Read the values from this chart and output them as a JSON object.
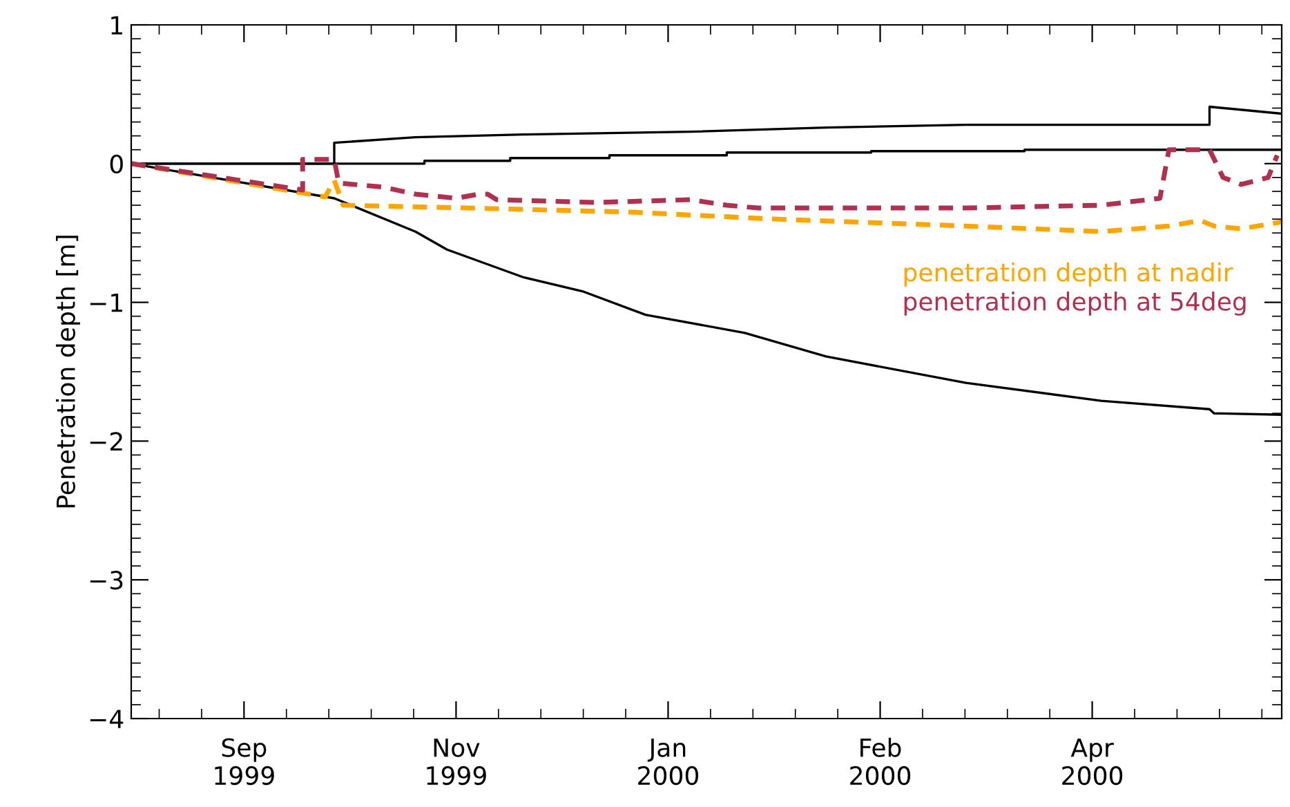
{
  "chart_data": {
    "type": "line",
    "ylabel": "Penetration depth [m]",
    "xlim": [
      "1999-09-05",
      "2000-05-17"
    ],
    "xticks": [
      {
        "value": "1999-09-30",
        "label": "Sep\n1999"
      },
      {
        "value": "1999-11-16",
        "label": "Nov\n1999"
      },
      {
        "value": "2000-01-02",
        "label": "Jan\n2000"
      },
      {
        "value": "2000-02-18",
        "label": "Feb\n2000"
      },
      {
        "value": "2000-04-05",
        "label": "Apr\n2000"
      }
    ],
    "ylim": [
      -4,
      1
    ],
    "yticks": [
      {
        "value": -4,
        "label": "−4"
      },
      {
        "value": -3,
        "label": "−3"
      },
      {
        "value": -2,
        "label": "−2"
      },
      {
        "value": -1,
        "label": "−1"
      },
      0,
      1
    ],
    "grid": false,
    "legend": "right",
    "marker": "none",
    "series": [
      {
        "color": "#000000",
        "line_style": "solid",
        "x": [
          "1999-09-05",
          "1999-10-20",
          "1999-10-20",
          "1999-11-07",
          "1999-12-01",
          "2000-01-07",
          "2000-02-06",
          "2000-03-08",
          "2000-05-01",
          "2000-05-01",
          "2000-05-17"
        ],
        "values": [
          0,
          0,
          0.15,
          0.19,
          0.21,
          0.23,
          0.26,
          0.28,
          0.28,
          0.41,
          0.36
        ]
      },
      {
        "color": "#000000",
        "line_style": "solid",
        "x": [
          "1999-09-05",
          "1999-11-09",
          "1999-11-09",
          "1999-11-28",
          "1999-11-28",
          "1999-12-20",
          "1999-12-20",
          "2000-01-15",
          "2000-01-15",
          "2000-02-16",
          "2000-02-16",
          "2000-03-21",
          "2000-03-21",
          "2000-05-17"
        ],
        "values": [
          0,
          0,
          0.02,
          0.02,
          0.04,
          0.04,
          0.06,
          0.06,
          0.08,
          0.08,
          0.09,
          0.09,
          0.1,
          0.1
        ]
      },
      {
        "color": "#000000",
        "line_style": "solid",
        "x": [
          "1999-09-05",
          "1999-10-20",
          "1999-11-07",
          "1999-11-14",
          "1999-12-01",
          "1999-12-14",
          "1999-12-28",
          "2000-01-19",
          "2000-02-06",
          "2000-03-08",
          "2000-04-07",
          "2000-05-01",
          "2000-05-02",
          "2000-05-17"
        ],
        "values": [
          0,
          -0.25,
          -0.49,
          -0.62,
          -0.82,
          -0.92,
          -1.09,
          -1.22,
          -1.39,
          -1.58,
          -1.71,
          -1.77,
          -1.8,
          -1.81
        ]
      },
      {
        "name": "penetration depth at nadir",
        "color": "#ffa500",
        "line_style": "dashed",
        "x": [
          "1999-09-05",
          "1999-10-18",
          "1999-10-20",
          "1999-10-22",
          "1999-11-19",
          "1999-12-25",
          "2000-01-13",
          "2000-01-26",
          "2000-03-08",
          "2000-04-07",
          "2000-04-22",
          "2000-04-29",
          "2000-05-02",
          "2000-05-08",
          "2000-05-17"
        ],
        "values": [
          0,
          -0.24,
          -0.12,
          -0.3,
          -0.32,
          -0.35,
          -0.38,
          -0.4,
          -0.45,
          -0.49,
          -0.45,
          -0.41,
          -0.45,
          -0.47,
          -0.42
        ]
      },
      {
        "name": "penetration depth at 54deg",
        "color": "#b03050",
        "line_style": "dashed",
        "x": [
          "1999-09-05",
          "1999-10-13",
          "1999-10-13",
          "1999-10-20",
          "1999-10-21",
          "1999-10-31",
          "1999-11-07",
          "1999-11-16",
          "1999-11-21",
          "1999-11-23",
          "1999-11-25",
          "1999-12-17",
          "2000-01-07",
          "2000-01-15",
          "2000-01-22",
          "2000-03-08",
          "2000-04-07",
          "2000-04-20",
          "2000-04-22",
          "2000-05-01",
          "2000-05-04",
          "2000-05-08",
          "2000-05-14",
          "2000-05-16"
        ],
        "values": [
          0,
          -0.19,
          0.03,
          0.03,
          -0.14,
          -0.17,
          -0.22,
          -0.25,
          -0.22,
          -0.22,
          -0.26,
          -0.28,
          -0.26,
          -0.3,
          -0.32,
          -0.32,
          -0.3,
          -0.25,
          0.1,
          0.1,
          -0.1,
          -0.15,
          -0.1,
          0.06
        ]
      }
    ]
  }
}
